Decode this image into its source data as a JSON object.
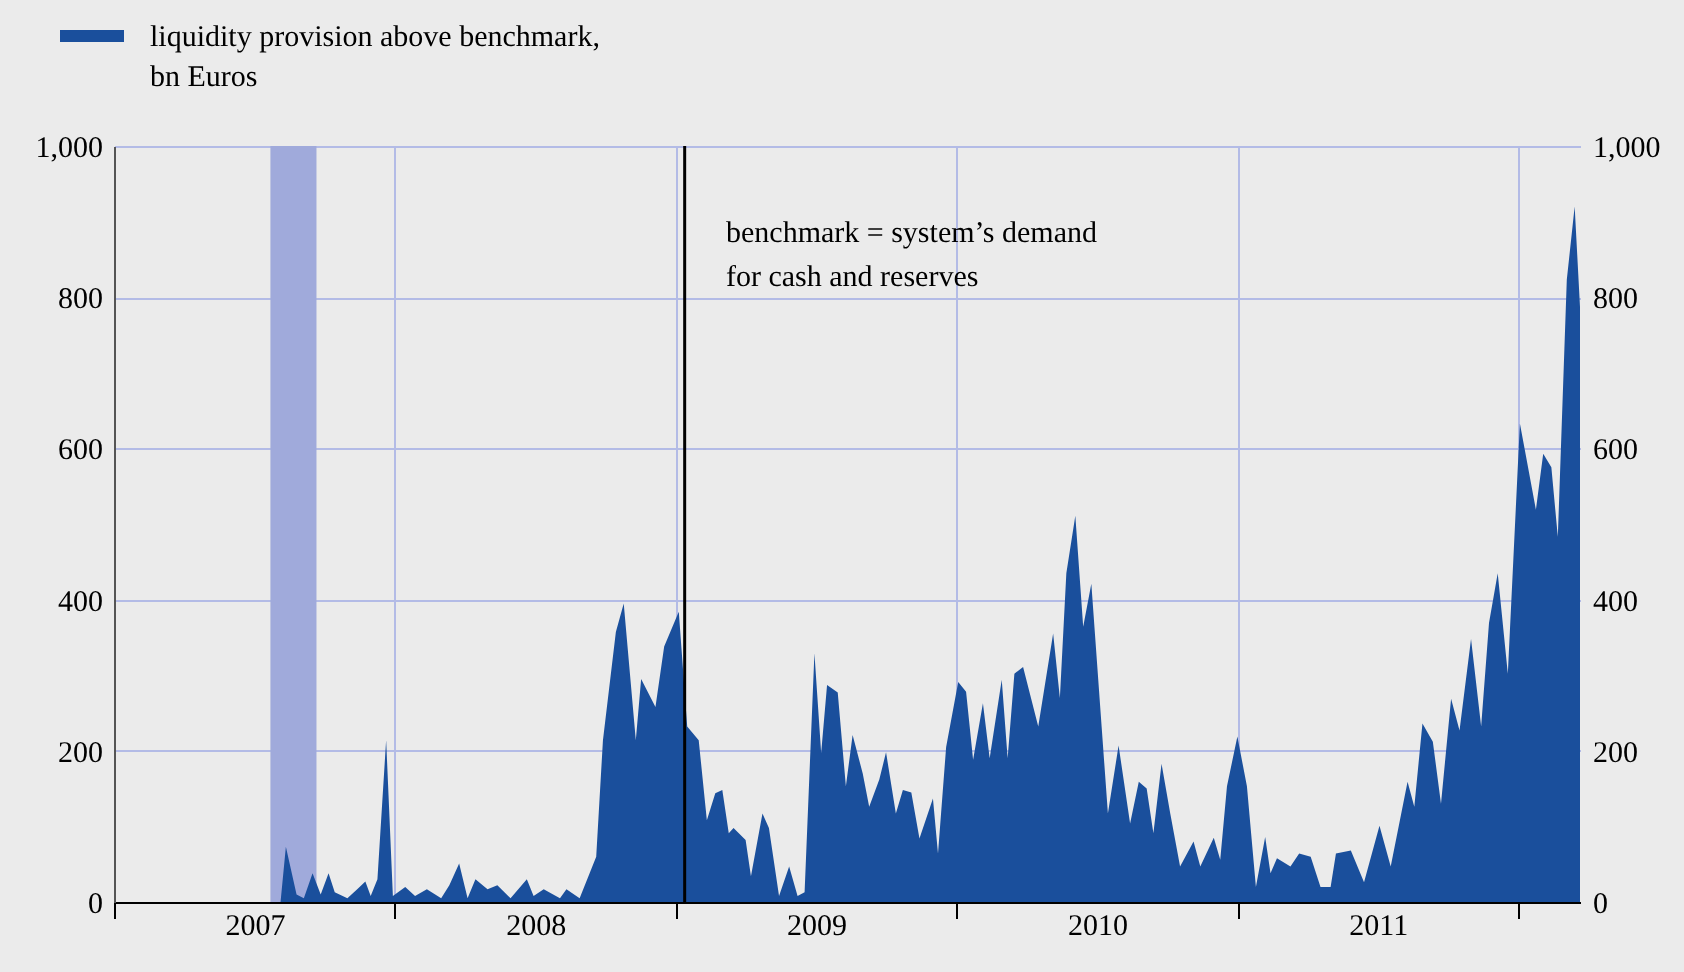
{
  "chart_data": {
    "type": "area",
    "series": [
      {
        "name": "liquidity provision above benchmark, bn Euros",
        "color": "#1a4f9c",
        "x": [
          2007.593,
          2007.612,
          2007.65,
          2007.676,
          2007.707,
          2007.736,
          2007.764,
          2007.786,
          2007.831,
          2007.866,
          2007.895,
          2007.914,
          2007.938,
          2007.969,
          2007.993,
          2008.037,
          2008.072,
          2008.114,
          2008.165,
          2008.194,
          2008.229,
          2008.259,
          2008.287,
          2008.33,
          2008.365,
          2008.412,
          2008.47,
          2008.494,
          2008.53,
          2008.588,
          2008.611,
          2008.658,
          2008.717,
          2008.741,
          2008.787,
          2008.815,
          2008.858,
          2008.877,
          2008.928,
          2008.959,
          2009.011,
          2009.041,
          2009.082,
          2009.111,
          2009.141,
          2009.166,
          2009.189,
          2009.206,
          2009.249,
          2009.268,
          2009.309,
          2009.332,
          2009.368,
          2009.404,
          2009.434,
          2009.459,
          2009.494,
          2009.518,
          2009.539,
          2009.577,
          2009.606,
          2009.63,
          2009.666,
          2009.689,
          2009.725,
          2009.749,
          2009.784,
          2009.809,
          2009.839,
          2009.868,
          2009.916,
          2009.934,
          2009.963,
          2010.006,
          2010.034,
          2010.059,
          2010.094,
          2010.118,
          2010.161,
          2010.182,
          2010.206,
          2010.237,
          2010.291,
          2010.344,
          2010.368,
          2010.391,
          2010.423,
          2010.451,
          2010.48,
          2010.539,
          2010.577,
          2010.618,
          2010.649,
          2010.677,
          2010.701,
          2010.73,
          2010.761,
          2010.796,
          2010.844,
          2010.868,
          2010.916,
          2010.939,
          2010.963,
          2011.0,
          2011.034,
          2011.066,
          2011.099,
          2011.118,
          2011.141,
          2011.189,
          2011.22,
          2011.261,
          2011.296,
          2011.332,
          2011.351,
          2011.404,
          2011.451,
          2011.506,
          2011.546,
          2011.606,
          2011.63,
          2011.659,
          2011.696,
          2011.725,
          2011.761,
          2011.791,
          2011.832,
          2011.868,
          2011.896,
          2011.927,
          2011.963,
          2012.006,
          2012.063,
          2012.089,
          2012.118,
          2012.141,
          2012.173,
          2012.201,
          2012.22
        ],
        "values": [
          0,
          73,
          10,
          5,
          38,
          10,
          38,
          13,
          5,
          17,
          27,
          8,
          30,
          214,
          8,
          20,
          8,
          17,
          5,
          22,
          51,
          5,
          30,
          17,
          22,
          5,
          30,
          8,
          17,
          5,
          17,
          5,
          60,
          214,
          357,
          395,
          214,
          295,
          258,
          338,
          384,
          232,
          214,
          108,
          144,
          148,
          91,
          98,
          82,
          34,
          117,
          98,
          8,
          47,
          8,
          13,
          329,
          197,
          287,
          277,
          153,
          221,
          170,
          126,
          162,
          198,
          117,
          148,
          145,
          84,
          137,
          64,
          205,
          291,
          278,
          188,
          263,
          190,
          294,
          190,
          302,
          311,
          232,
          355,
          270,
          435,
          511,
          364,
          421,
          117,
          207,
          104,
          159,
          150,
          91,
          183,
          117,
          47,
          80,
          47,
          85,
          56,
          153,
          219,
          153,
          20,
          86,
          38,
          58,
          47,
          64,
          60,
          20,
          20,
          64,
          68,
          26,
          101,
          47,
          159,
          126,
          236,
          212,
          130,
          269,
          227,
          348,
          232,
          369,
          435,
          302,
          633,
          519,
          593,
          575,
          483,
          823,
          920,
          787
        ]
      }
    ],
    "xlim": [
      2007,
      2012.22
    ],
    "xticks": [
      {
        "value": 2007,
        "label": null
      },
      {
        "value": 2007.5,
        "label": "2007"
      },
      {
        "value": 2008,
        "label": null
      },
      {
        "value": 2008.5,
        "label": "2008"
      },
      {
        "value": 2009,
        "label": null
      },
      {
        "value": 2009.5,
        "label": "2009"
      },
      {
        "value": 2010,
        "label": null
      },
      {
        "value": 2010.5,
        "label": "2010"
      },
      {
        "value": 2011,
        "label": null
      },
      {
        "value": 2011.5,
        "label": "2011"
      },
      {
        "value": 2012,
        "label": null
      }
    ],
    "ylim": [
      0,
      1000
    ],
    "yticks": [
      0,
      200,
      400,
      600,
      800,
      {
        "value": 1000,
        "label": "1,000"
      }
    ],
    "y2lim": [
      0,
      1000
    ],
    "y2ticks": [
      0,
      200,
      400,
      600,
      800,
      {
        "value": 1000,
        "label": "1,000"
      }
    ],
    "bands": [
      {
        "axis": "x",
        "from": 2007.557,
        "to": 2007.721,
        "color": "#a0aadb"
      }
    ],
    "ref_lines": [
      {
        "axis": "x",
        "value": 2009.032,
        "color": "#000000",
        "line_style": "solid"
      }
    ],
    "annotations": [
      "benchmark = system’s demand for cash and reserves"
    ],
    "grid": true,
    "legend": "top left"
  }
}
